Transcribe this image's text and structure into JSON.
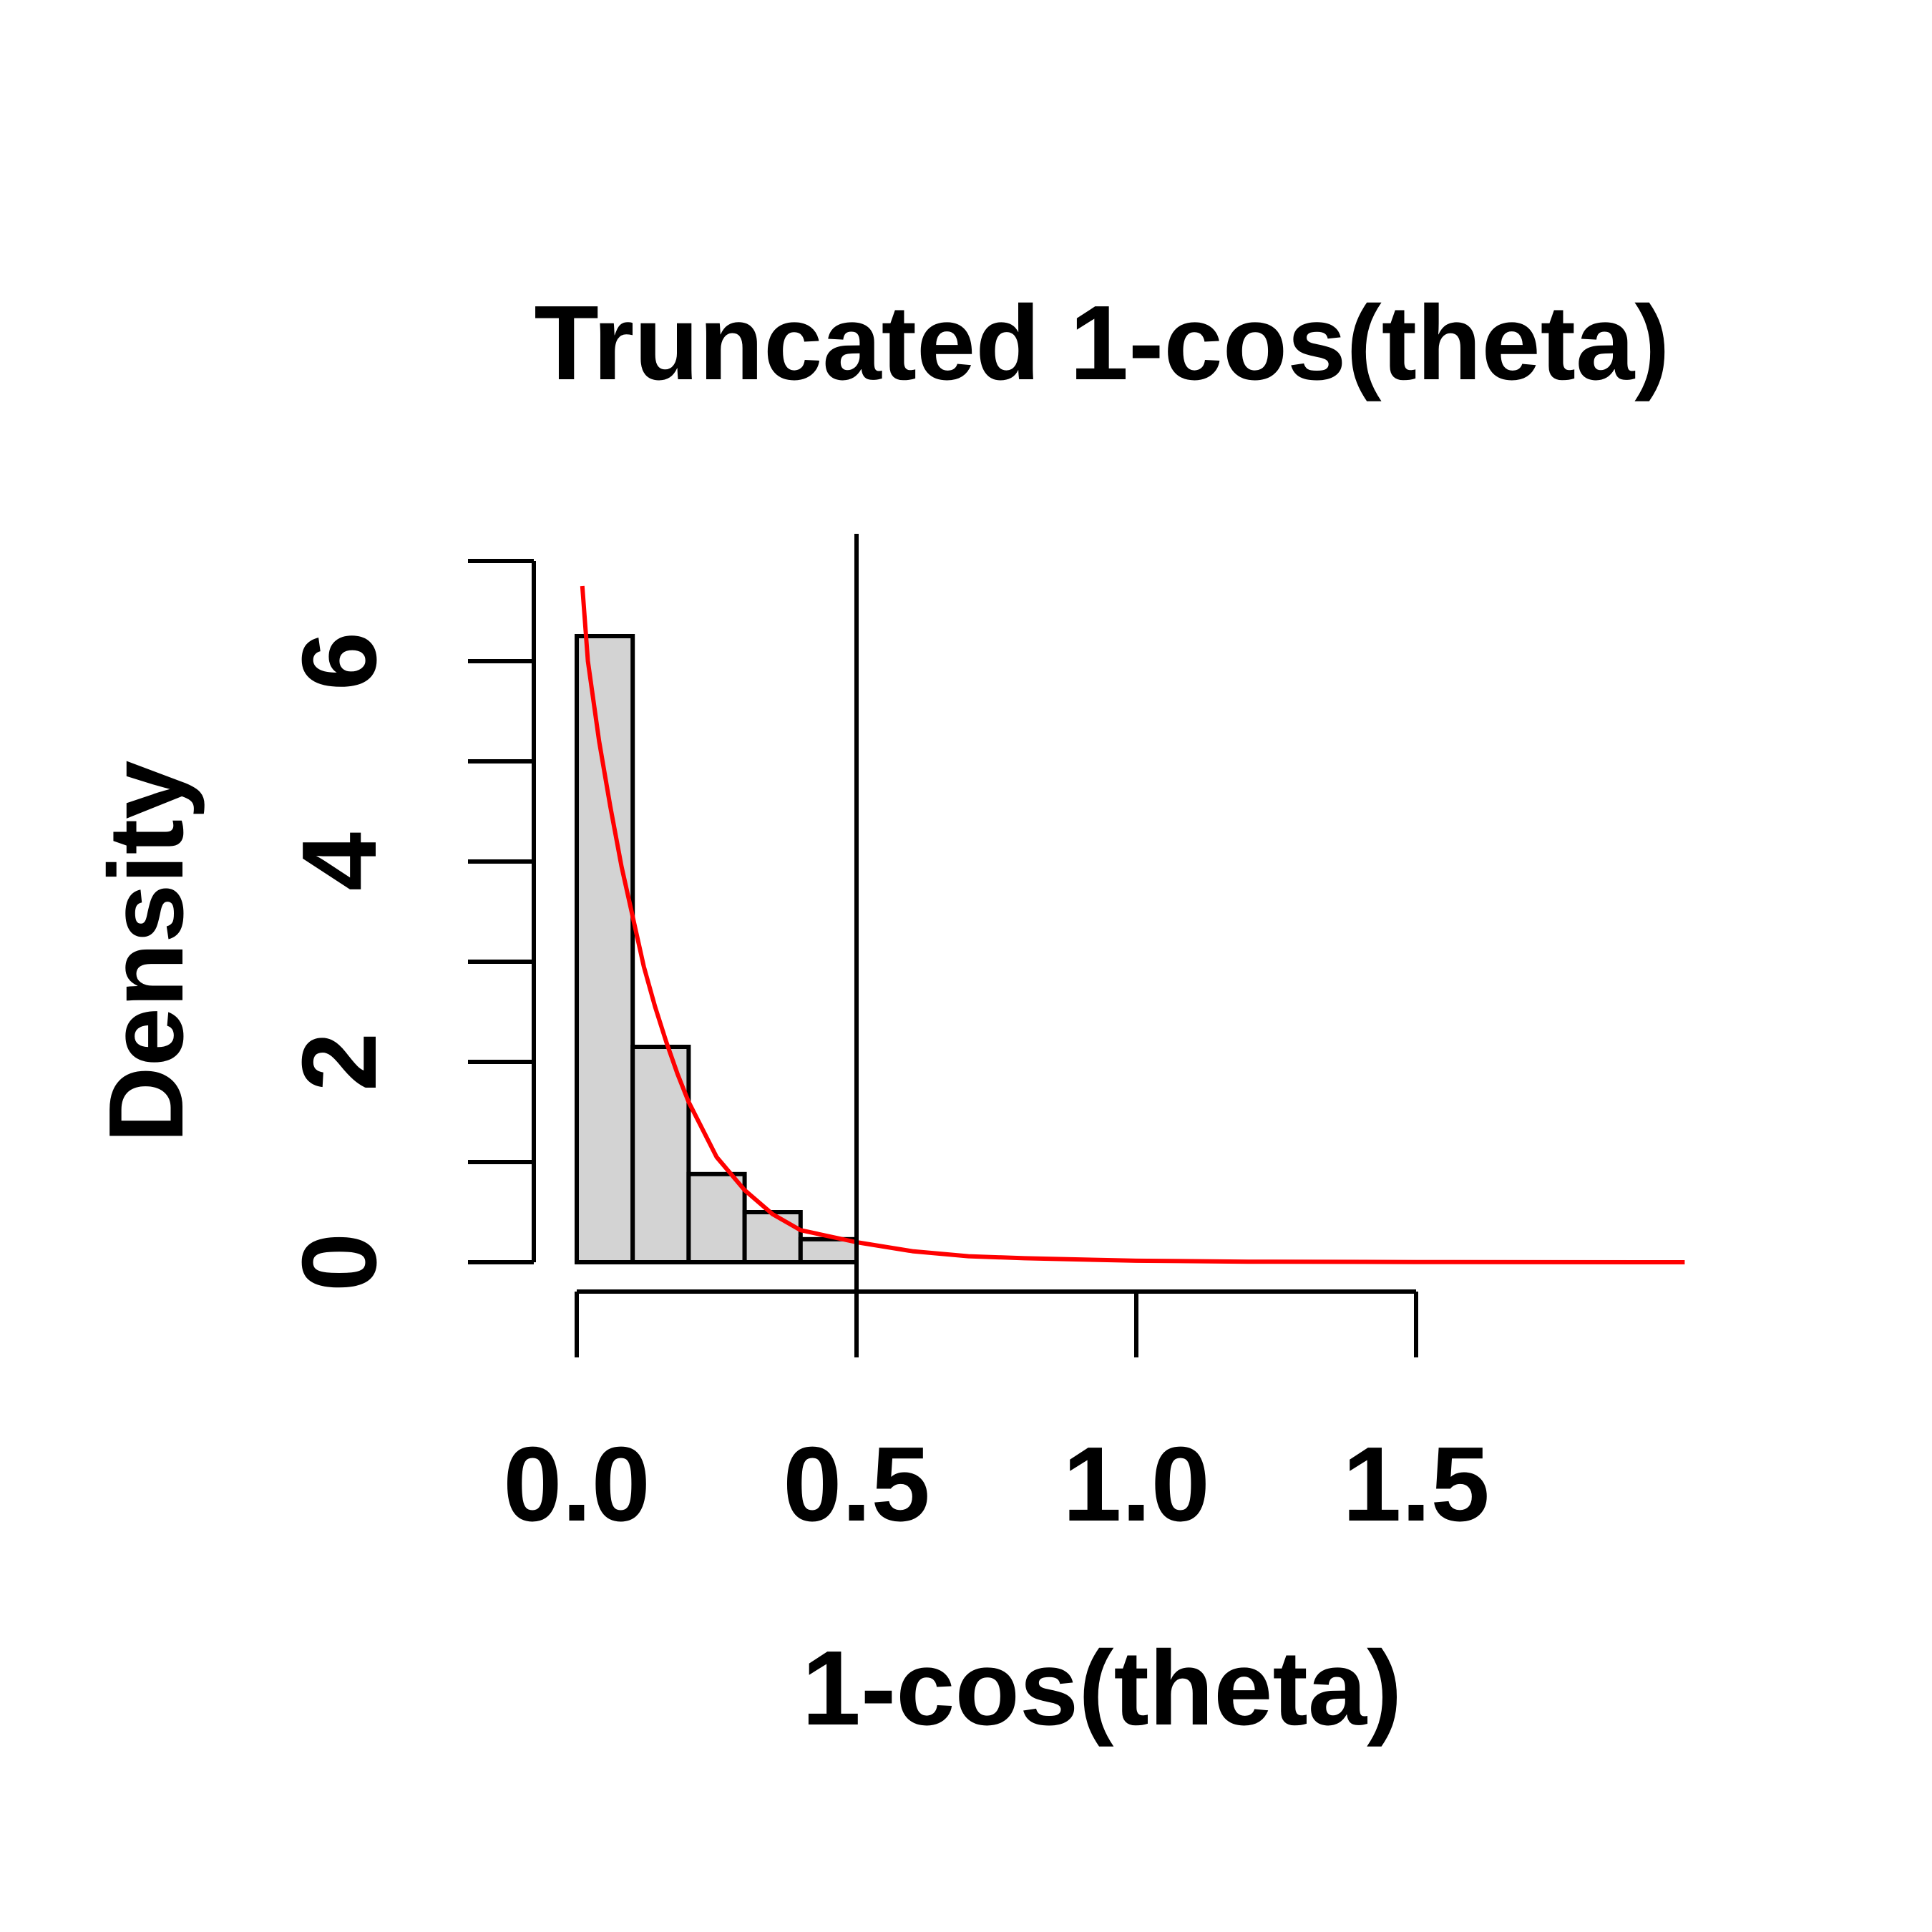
{
  "chart_data": {
    "type": "bar",
    "title": "Truncated 1-cos(theta)",
    "xlabel": "1-cos(theta)",
    "ylabel": "Density",
    "xlim": [
      0,
      2.0
    ],
    "ylim": [
      0,
      7
    ],
    "x_ticks": [
      0.0,
      0.5,
      1.0,
      1.5
    ],
    "x_tick_labels": [
      "0.0",
      "0.5",
      "1.0",
      "1.5"
    ],
    "y_ticks": [
      0,
      1,
      2,
      3,
      4,
      5,
      6,
      7
    ],
    "y_tick_labels": [
      "0",
      "2",
      "4",
      "6"
    ],
    "y_labeled_ticks": [
      0,
      2,
      4,
      6
    ],
    "histogram": {
      "bin_edges": [
        0.0,
        0.1,
        0.2,
        0.3,
        0.4,
        0.5
      ],
      "values": [
        6.25,
        2.15,
        0.88,
        0.5,
        0.23
      ],
      "fill": "#d3d3d3",
      "stroke": "#000000"
    },
    "density_curve": {
      "name": "",
      "color": "#ff0000",
      "x": [
        0.01,
        0.02,
        0.04,
        0.06,
        0.08,
        0.1,
        0.12,
        0.14,
        0.16,
        0.18,
        0.2,
        0.25,
        0.3,
        0.35,
        0.4,
        0.5,
        0.6,
        0.7,
        0.8,
        1.0,
        1.2,
        1.5,
        1.98
      ],
      "y": [
        6.75,
        6.0,
        5.2,
        4.55,
        3.95,
        3.45,
        2.95,
        2.55,
        2.2,
        1.88,
        1.6,
        1.05,
        0.72,
        0.48,
        0.32,
        0.2,
        0.11,
        0.06,
        0.04,
        0.015,
        0.006,
        0.002,
        0.0
      ]
    },
    "vertical_line": {
      "x": 0.5,
      "color": "#000000"
    },
    "grid": false
  }
}
